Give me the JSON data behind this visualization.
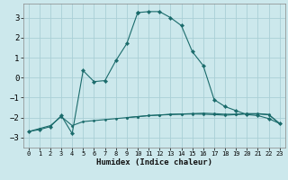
{
  "xlabel": "Humidex (Indice chaleur)",
  "xlim": [
    -0.5,
    23.5
  ],
  "ylim": [
    -3.5,
    3.7
  ],
  "xticks": [
    0,
    1,
    2,
    3,
    4,
    5,
    6,
    7,
    8,
    9,
    10,
    11,
    12,
    13,
    14,
    15,
    16,
    17,
    18,
    19,
    20,
    21,
    22,
    23
  ],
  "yticks": [
    -3,
    -2,
    -1,
    0,
    1,
    2,
    3
  ],
  "bg_color": "#cce8ec",
  "grid_color": "#aacfd6",
  "line_color": "#1a6b6b",
  "series1_x": [
    10,
    11,
    12,
    13,
    14,
    15,
    16,
    17,
    18,
    19,
    20,
    21,
    22,
    23
  ],
  "series1_y": [
    3.25,
    3.3,
    3.3,
    3.0,
    2.6,
    1.3,
    0.6,
    -1.1,
    -1.45,
    -1.65,
    -1.85,
    -1.9,
    -2.05,
    -2.3
  ],
  "series2_x": [
    0,
    1,
    2,
    3,
    4,
    5,
    6,
    7,
    8,
    9,
    10
  ],
  "series2_y": [
    -2.7,
    -2.6,
    -2.45,
    -1.9,
    -2.8,
    0.35,
    -0.2,
    -0.15,
    0.85,
    1.7,
    3.25
  ],
  "series3_x": [
    0,
    1,
    2,
    3,
    4,
    5,
    6,
    7,
    8,
    9,
    10,
    11,
    12,
    13,
    14,
    15,
    16,
    17,
    18,
    19,
    20,
    21,
    22,
    23
  ],
  "series3_y": [
    -2.7,
    -2.55,
    -2.4,
    -1.95,
    -2.4,
    -2.2,
    -2.15,
    -2.1,
    -2.05,
    -2.0,
    -1.95,
    -1.9,
    -1.87,
    -1.85,
    -1.83,
    -1.82,
    -1.83,
    -1.85,
    -1.88,
    -1.85,
    -1.82,
    -1.82,
    -1.86,
    -2.3
  ],
  "series4_x": [
    9,
    10,
    11,
    12,
    13,
    14,
    15,
    16,
    17,
    18,
    19,
    20,
    21,
    22,
    23
  ],
  "series4_y": [
    -2.0,
    -1.95,
    -1.9,
    -1.87,
    -1.83,
    -1.82,
    -1.8,
    -1.78,
    -1.8,
    -1.83,
    -1.83,
    -1.8,
    -1.8,
    -1.84,
    -2.3
  ]
}
